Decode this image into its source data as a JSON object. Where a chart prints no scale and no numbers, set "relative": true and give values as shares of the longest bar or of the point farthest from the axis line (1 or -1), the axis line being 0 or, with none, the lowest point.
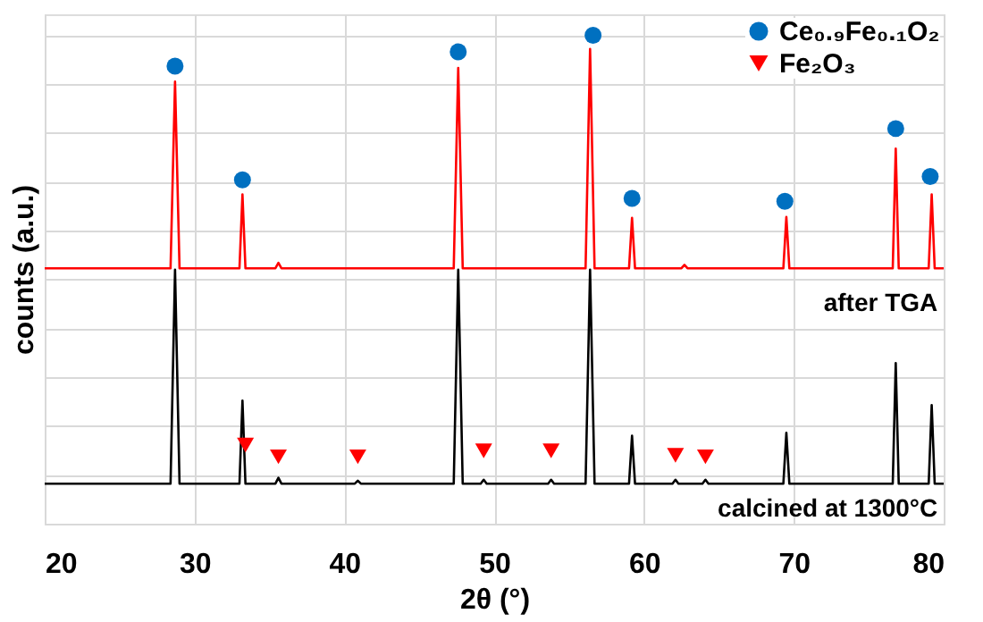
{
  "chart_data": {
    "type": "line",
    "relative": true,
    "xlabel": "2θ (°)",
    "ylabel": "counts (a.u.)",
    "xlim": [
      20,
      80
    ],
    "xticks": [
      20,
      30,
      40,
      50,
      60,
      70,
      80
    ],
    "grid": true,
    "tick_labels": "x",
    "legend": "top right",
    "series": [
      {
        "color": "#ff0000",
        "x": [
          20,
          28.4,
          28.7,
          29.0,
          33.0,
          33.2,
          33.4,
          35.4,
          35.6,
          35.8,
          47.3,
          47.6,
          47.9,
          56.1,
          56.4,
          56.7,
          59.0,
          59.2,
          59.4,
          62.5,
          62.7,
          62.9,
          69.3,
          69.5,
          69.7,
          76.6,
          76.8,
          77.0,
          79.0,
          79.2,
          79.4,
          80
        ],
        "values": [
          0.523,
          0.523,
          0.905,
          0.523,
          0.523,
          0.674,
          0.523,
          0.523,
          0.534,
          0.523,
          0.523,
          0.933,
          0.523,
          0.523,
          0.972,
          0.523,
          0.523,
          0.626,
          0.523,
          0.523,
          0.53,
          0.523,
          0.523,
          0.628,
          0.523,
          0.523,
          0.768,
          0.523,
          0.523,
          0.674,
          0.523,
          0.523
        ]
      },
      {
        "color": "#000000",
        "x": [
          20,
          28.4,
          28.7,
          29.0,
          33.0,
          33.2,
          33.4,
          35.4,
          35.6,
          35.8,
          40.7,
          40.9,
          41.1,
          47.3,
          47.6,
          47.9,
          49.1,
          49.3,
          49.5,
          53.6,
          53.8,
          54.0,
          56.1,
          56.4,
          56.7,
          59.0,
          59.2,
          59.4,
          61.9,
          62.1,
          62.3,
          63.9,
          64.1,
          64.3,
          69.3,
          69.5,
          69.7,
          76.6,
          76.8,
          77.0,
          79.0,
          79.2,
          79.4,
          80
        ],
        "values": [
          0.082,
          0.082,
          0.52,
          0.082,
          0.082,
          0.252,
          0.082,
          0.082,
          0.094,
          0.082,
          0.082,
          0.088,
          0.082,
          0.082,
          0.52,
          0.082,
          0.082,
          0.09,
          0.082,
          0.082,
          0.09,
          0.082,
          0.082,
          0.52,
          0.082,
          0.082,
          0.18,
          0.082,
          0.082,
          0.09,
          0.082,
          0.082,
          0.09,
          0.082,
          0.082,
          0.186,
          0.082,
          0.082,
          0.329,
          0.082,
          0.082,
          0.243,
          0.082,
          0.082
        ]
      },
      {
        "type": "scatter",
        "name": "Ce₀.₉Fe₀.₁O₂",
        "color": "#0070c0",
        "marker": "circle",
        "x": [
          28.7,
          33.2,
          47.6,
          56.6,
          59.2,
          69.4,
          76.8,
          79.1
        ],
        "values": [
          0.937,
          0.704,
          0.966,
          1.0,
          0.666,
          0.66,
          0.809,
          0.711
        ]
      },
      {
        "type": "scatter",
        "name": "Fe₂O₃",
        "color": "#ff0000",
        "marker": "triangle",
        "x": [
          33.4,
          35.6,
          40.9,
          49.3,
          53.8,
          62.1,
          64.1
        ],
        "values": [
          0.161,
          0.137,
          0.137,
          0.149,
          0.149,
          0.14,
          0.137
        ]
      }
    ],
    "annotations": [
      "after TGA",
      "calcined at 1300°C"
    ]
  }
}
